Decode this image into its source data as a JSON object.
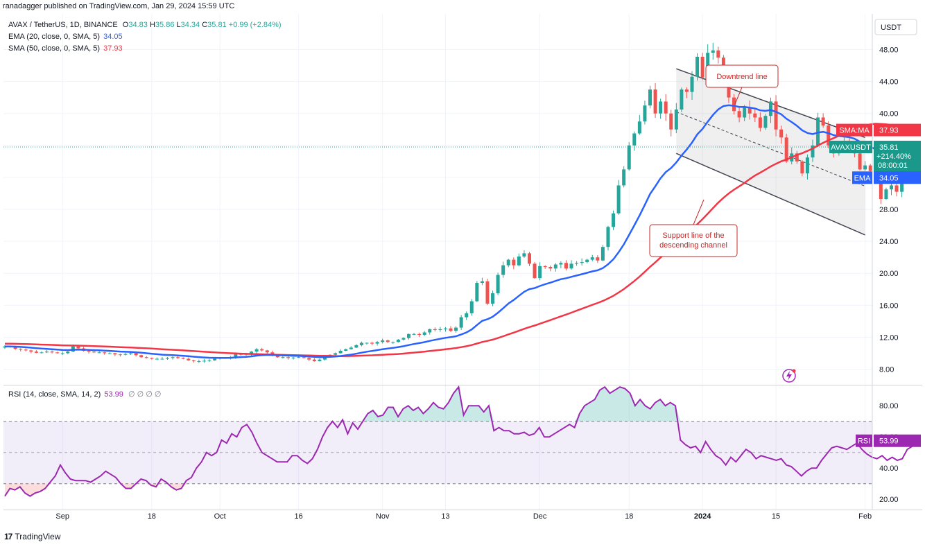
{
  "header": {
    "credit": "ranadagger published on TradingView.com, Jan 29, 2024 15:59 UTC",
    "symbol": "AVAX / TetherUS, 1D, BINANCE",
    "ohlc": {
      "O": "34.83",
      "H": "35.86",
      "L": "34.34",
      "C": "35.81",
      "change": "+0.99 (+2.84%)"
    },
    "ema_label": "EMA (20, close, 0, SMA, 5)",
    "ema_value": "34.05",
    "sma_label": "SMA (50, close, 0, SMA, 5)",
    "sma_value": "37.93",
    "rsi_label": "RSI (14, close, SMA, 14, 2)",
    "rsi_value": "53.99",
    "rsi_extra": "∅ ∅ ∅ ∅"
  },
  "brand": {
    "logo": "17",
    "name": "TradingView"
  },
  "colors": {
    "up": "#26a69a",
    "down": "#ef5350",
    "ema": "#2962ff",
    "sma": "#f23645",
    "rsi": "#9c27b0",
    "channel": "#434651",
    "annotation": "#c62828",
    "price_tag": "#1a998b"
  },
  "chart_data": [
    {
      "type": "candlestick",
      "pane": "price",
      "y_unit": "USDT",
      "ylim": [
        5.2,
        51.2
      ],
      "yticks": [
        "48.00",
        "44.00",
        "40.00",
        "36.00",
        "32.00",
        "28.00",
        "24.00",
        "20.00",
        "16.00",
        "12.00",
        "8.00"
      ],
      "xticks": [
        "Sep",
        "18",
        "Oct",
        "16",
        "Nov",
        "13",
        "Dec",
        "18",
        "2024",
        "15",
        "Feb"
      ],
      "x_start": "2023-08-21",
      "closes": [
        10.85,
        10.8,
        10.55,
        10.45,
        10.35,
        10.2,
        10.05,
        10.1,
        10.2,
        10.1,
        10.0,
        10.0,
        10.2,
        10.85,
        10.6,
        10.3,
        10.2,
        10.1,
        10.1,
        10.0,
        10.0,
        9.85,
        9.8,
        9.9,
        10.0,
        9.75,
        9.5,
        9.4,
        9.3,
        9.3,
        9.3,
        9.4,
        9.5,
        9.4,
        9.3,
        9.1,
        9.0,
        9.0,
        9.05,
        9.1,
        9.3,
        9.4,
        9.4,
        9.5,
        10.0,
        9.8,
        9.9,
        10.2,
        10.5,
        10.35,
        10.1,
        9.7,
        9.5,
        9.5,
        9.4,
        9.45,
        9.5,
        9.4,
        9.2,
        9.0,
        9.2,
        9.6,
        9.8,
        10.0,
        10.3,
        10.5,
        10.7,
        11.0,
        11.3,
        11.3,
        11.2,
        11.4,
        11.6,
        11.4,
        11.4,
        11.7,
        11.9,
        12.4,
        12.4,
        12.3,
        12.6,
        13.0,
        12.9,
        13.0,
        13.1,
        12.8,
        13.2,
        14.5,
        15.0,
        16.5,
        18.8,
        19.0,
        16.2,
        17.5,
        19.8,
        21.0,
        21.7,
        21.0,
        22.1,
        22.5,
        21.2,
        19.4,
        20.9,
        20.8,
        20.6,
        21.1,
        21.3,
        20.6,
        21.2,
        21.3,
        21.4,
        21.7,
        22.0,
        21.6,
        23.3,
        25.8,
        27.5,
        31.0,
        33.0,
        36.0,
        37.5,
        39.0,
        41.0,
        43.0,
        40.0,
        41.5,
        40.0,
        38.0,
        40.5,
        43.0,
        42.7,
        44.6,
        47.1,
        44.5,
        47.6,
        47.9,
        47.0,
        44.9,
        42.0,
        40.3,
        39.5,
        40.8,
        40.0,
        39.5,
        38.2,
        39.7,
        41.5,
        38.0,
        37.0,
        34.0,
        35.0,
        34.0,
        32.5,
        34.5,
        36.0,
        39.5,
        38.5,
        36.0,
        35.0,
        36.0,
        36.5,
        36.3,
        35.0,
        33.0,
        33.5,
        32.8,
        32.0,
        29.3,
        30.5,
        31.0,
        30.2,
        32.0,
        34.8,
        35.8
      ],
      "series": [
        {
          "name": "AVAX / TetherUS",
          "role": "candles"
        },
        {
          "name": "EMA (20, close, 0, SMA, 5)",
          "last": 34.05
        },
        {
          "name": "SMA (50, close, 0, SMA, 5)",
          "last": 37.93
        }
      ],
      "price_labels": [
        {
          "name": "SMA:MA",
          "value": "37.93"
        },
        {
          "name": "AVAXUSDT",
          "value": "35.81",
          "change": "+214.40%",
          "countdown": "08:00:01"
        },
        {
          "name": "EMA",
          "value": "34.05"
        }
      ],
      "annotations": [
        {
          "text": "Downtrend line"
        },
        {
          "text": "Support line of the descending channel"
        }
      ],
      "channel": {
        "upper": [
          [
            "2023-12-27",
            45.6
          ],
          [
            "2024-02-01",
            37.0
          ]
        ],
        "lower": [
          [
            "2023-12-27",
            35.0
          ],
          [
            "2024-02-01",
            24.8
          ]
        ],
        "mid": [
          [
            "2023-12-27",
            40.2
          ],
          [
            "2024-02-01",
            30.9
          ]
        ]
      }
    },
    {
      "type": "line",
      "pane": "rsi",
      "ylim": [
        15.4,
        95.0
      ],
      "yticks": [
        "80.00",
        "60.00",
        "40.00",
        "20.00"
      ],
      "bands": {
        "upper": 70,
        "middle": 50,
        "lower": 30
      },
      "series": [
        {
          "name": "RSI (14, close, SMA, 14, 2)",
          "values": [
            22,
            27,
            26,
            28,
            24,
            22,
            24,
            25,
            27,
            31,
            35,
            42,
            37,
            33,
            32,
            32,
            32,
            31,
            33,
            35,
            38,
            36,
            34,
            30,
            27,
            27,
            30,
            33,
            32,
            29,
            28,
            33,
            31,
            28,
            26,
            27,
            32,
            34,
            40,
            44,
            50,
            48,
            50,
            58,
            56,
            62,
            60,
            66,
            68,
            63,
            56,
            50,
            48,
            46,
            44,
            44,
            44,
            48,
            48,
            45,
            43,
            46,
            52,
            60,
            66,
            70,
            66,
            71,
            62,
            69,
            65,
            70,
            75,
            77,
            73,
            74,
            79,
            79,
            73,
            78,
            80,
            77,
            79,
            75,
            78,
            82,
            79,
            78,
            82,
            88,
            92,
            74,
            80,
            80,
            80,
            76,
            80,
            64,
            66,
            64,
            64,
            62,
            62,
            63,
            61,
            62,
            66,
            60,
            60,
            62,
            64,
            66,
            68,
            66,
            75,
            80,
            82,
            84,
            90,
            92,
            88,
            90,
            92,
            91,
            88,
            80,
            84,
            80,
            78,
            82,
            84,
            80,
            82,
            80,
            58,
            55,
            53,
            54,
            50,
            57,
            52,
            48,
            46,
            42,
            47,
            44,
            48,
            52,
            50,
            46,
            48,
            47,
            46,
            45,
            46,
            42,
            41,
            38,
            35,
            38,
            40,
            40,
            45,
            49,
            53,
            54,
            53,
            52,
            54,
            56,
            52,
            49,
            47,
            46,
            48,
            45,
            47,
            45,
            46,
            52,
            54
          ]
        }
      ],
      "last_label": {
        "name": "RSI",
        "value": "53.99"
      },
      "ytick_note": "shown with price pane x axis"
    }
  ]
}
